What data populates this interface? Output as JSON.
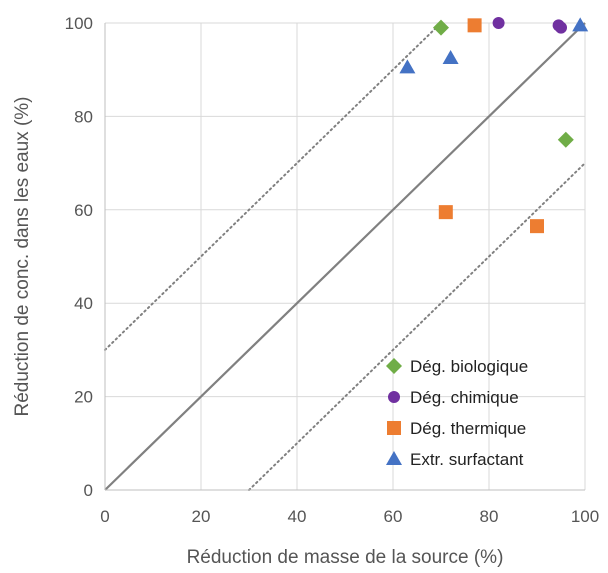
{
  "chart_data": {
    "type": "scatter",
    "xlabel": "Réduction de masse de la source (%)",
    "ylabel": "Réduction de conc. dans les eaux (%)",
    "xlim": [
      0,
      100
    ],
    "ylim": [
      0,
      100
    ],
    "xticks": [
      "0",
      "20",
      "40",
      "60",
      "80",
      "100"
    ],
    "yticks": [
      "0",
      "20",
      "40",
      "60",
      "80",
      "100"
    ],
    "grid": true,
    "legend_position": "bottom-right",
    "reference_lines": [
      {
        "style": "solid",
        "color": "#808080",
        "points": [
          [
            0,
            0
          ],
          [
            100,
            100
          ]
        ]
      },
      {
        "style": "dotted",
        "color": "#808080",
        "points": [
          [
            0,
            30
          ],
          [
            70,
            100
          ]
        ]
      },
      {
        "style": "dotted",
        "color": "#808080",
        "points": [
          [
            30,
            0
          ],
          [
            100,
            70
          ]
        ]
      }
    ],
    "series": [
      {
        "name": "Dég. biologique",
        "marker": "diamond",
        "color": "#70AD47",
        "points": [
          [
            70,
            99
          ],
          [
            96,
            75
          ]
        ]
      },
      {
        "name": "Dég. chimique",
        "marker": "circle",
        "color": "#7030A0",
        "points": [
          [
            82,
            100
          ],
          [
            94.5,
            99.5
          ],
          [
            95,
            99
          ]
        ]
      },
      {
        "name": "Dég. thermique",
        "marker": "square",
        "color": "#ED7D31",
        "points": [
          [
            77,
            99.5
          ],
          [
            71,
            59.5
          ],
          [
            90,
            56.5
          ]
        ]
      },
      {
        "name": "Extr. surfactant",
        "marker": "triangle",
        "color": "#4472C4",
        "points": [
          [
            63,
            90.5
          ],
          [
            72,
            92.5
          ],
          [
            99,
            99.5
          ]
        ]
      }
    ]
  }
}
